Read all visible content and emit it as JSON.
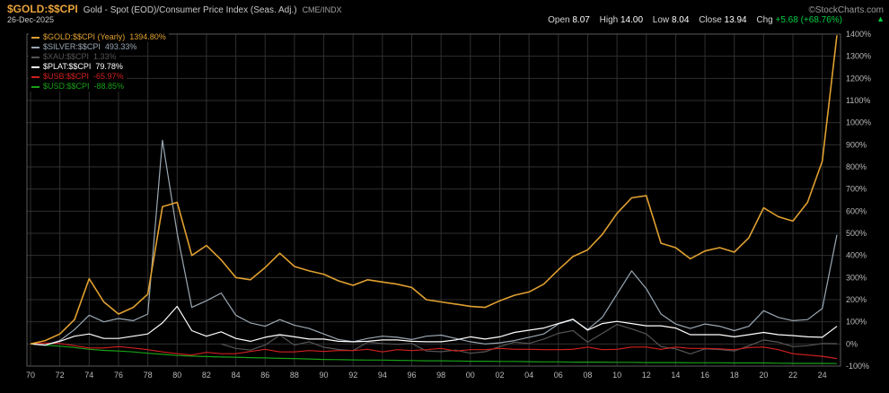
{
  "header": {
    "symbol": "$GOLD:$$CPI",
    "description": "Gold - Spot (EOD)/Consumer Price Index (Seas. Adj.)",
    "exchange": "CME/INDX",
    "date": "26-Dec-2025",
    "copyright": "©StockCharts.com",
    "quote": {
      "open_label": "Open",
      "open": "8.07",
      "high_label": "High",
      "high": "14.00",
      "low_label": "Low",
      "low": "8.04",
      "close_label": "Close",
      "close": "13.94",
      "chg_label": "Chg",
      "chg": "+5.68 (+68.76%)",
      "arrow": "▲"
    }
  },
  "colors": {
    "title": "#e8a33c",
    "up": "#00cc44",
    "grid": "#2f2f2f",
    "frame": "#5a5a5a",
    "axis_text": "#b9b9b9"
  },
  "legend": {
    "items": [
      {
        "label": "$GOLD:$$CPI (Yearly)",
        "value": "1394.80%"
      },
      {
        "label": "$SILVER:$$CPI",
        "value": "493.33%"
      },
      {
        "label": "$XAU:$$CPI",
        "value": "1.33%"
      },
      {
        "label": "$PLAT:$$CPI",
        "value": "79.78%"
      },
      {
        "label": "$USB:$$CPI",
        "value": "-65.97%"
      },
      {
        "label": "$USD:$$CPI",
        "value": "-88.85%"
      }
    ]
  },
  "chart_data": {
    "type": "line",
    "title": "$GOLD:$$CPI (Yearly)",
    "ylim": [
      -100,
      1400
    ],
    "grid": true,
    "legend_position": "top-left",
    "x": [
      1970,
      1971,
      1972,
      1973,
      1974,
      1975,
      1976,
      1977,
      1978,
      1979,
      1980,
      1981,
      1982,
      1983,
      1984,
      1985,
      1986,
      1987,
      1988,
      1989,
      1990,
      1991,
      1992,
      1993,
      1994,
      1995,
      1996,
      1997,
      1998,
      1999,
      2000,
      2001,
      2002,
      2003,
      2004,
      2005,
      2006,
      2007,
      2008,
      2009,
      2010,
      2011,
      2012,
      2013,
      2014,
      2015,
      2016,
      2017,
      2018,
      2019,
      2020,
      2021,
      2022,
      2023,
      2024,
      2025
    ],
    "x_tick_years": [
      1970,
      1972,
      1974,
      1976,
      1978,
      1980,
      1982,
      1984,
      1986,
      1988,
      1990,
      1992,
      1994,
      1996,
      1998,
      2000,
      2002,
      2004,
      2006,
      2008,
      2010,
      2012,
      2014,
      2016,
      2018,
      2020,
      2022,
      2024
    ],
    "x_tick_labels": [
      "70",
      "72",
      "74",
      "76",
      "78",
      "80",
      "82",
      "84",
      "86",
      "88",
      "90",
      "92",
      "94",
      "96",
      "98",
      "00",
      "02",
      "04",
      "06",
      "08",
      "10",
      "12",
      "14",
      "16",
      "18",
      "20",
      "22",
      "24"
    ],
    "y_tick_values": [
      1400,
      1300,
      1200,
      1100,
      1000,
      900,
      800,
      700,
      600,
      500,
      400,
      300,
      200,
      100,
      0,
      -100
    ],
    "y_tick_labels": [
      "1400%",
      "1300%",
      "1200%",
      "1100%",
      "1000%",
      "900%",
      "800%",
      "700%",
      "600%",
      "500%",
      "400%",
      "300%",
      "200%",
      "100%",
      "0%",
      "-100%"
    ],
    "series": [
      {
        "name": "$GOLD:$$CPI",
        "color": "#e0a030",
        "values": [
          0,
          15,
          45,
          110,
          295,
          190,
          135,
          165,
          225,
          620,
          640,
          400,
          445,
          380,
          300,
          290,
          345,
          410,
          350,
          330,
          315,
          285,
          265,
          290,
          280,
          270,
          255,
          200,
          190,
          180,
          170,
          165,
          195,
          220,
          235,
          270,
          335,
          395,
          425,
          495,
          590,
          660,
          670,
          455,
          435,
          385,
          420,
          435,
          415,
          480,
          615,
          575,
          555,
          640,
          826,
          1394.8
        ]
      },
      {
        "name": "$SILVER:$$CPI",
        "color": "#9aa8b4",
        "values": [
          0,
          -5,
          15,
          65,
          130,
          100,
          115,
          105,
          135,
          920,
          500,
          165,
          195,
          230,
          130,
          95,
          80,
          110,
          85,
          70,
          45,
          20,
          10,
          25,
          35,
          30,
          20,
          35,
          40,
          25,
          10,
          0,
          5,
          15,
          30,
          45,
          90,
          110,
          65,
          120,
          225,
          330,
          250,
          135,
          90,
          70,
          90,
          80,
          60,
          80,
          150,
          120,
          105,
          110,
          160,
          493.33
        ]
      },
      {
        "name": "$XAU:$$CPI",
        "color": "#555555",
        "values": [
          null,
          null,
          null,
          null,
          null,
          null,
          null,
          null,
          null,
          null,
          null,
          null,
          null,
          0,
          -20,
          -28,
          -5,
          40,
          -5,
          10,
          -15,
          -25,
          -30,
          8,
          2,
          -2,
          2,
          -32,
          -35,
          -28,
          -42,
          -35,
          -12,
          8,
          2,
          22,
          48,
          60,
          8,
          48,
          88,
          68,
          45,
          -12,
          -22,
          -45,
          -22,
          -25,
          -32,
          -8,
          18,
          8,
          -12,
          -8,
          2,
          1.33
        ]
      },
      {
        "name": "$PLAT:$$CPI",
        "color": "#ffffff",
        "values": [
          0,
          -5,
          12,
          35,
          45,
          25,
          25,
          35,
          45,
          95,
          170,
          60,
          35,
          55,
          25,
          12,
          30,
          42,
          32,
          22,
          22,
          12,
          10,
          12,
          18,
          18,
          12,
          10,
          10,
          18,
          32,
          22,
          32,
          52,
          62,
          72,
          92,
          112,
          62,
          92,
          102,
          92,
          82,
          82,
          72,
          42,
          42,
          42,
          32,
          42,
          52,
          42,
          38,
          32,
          30,
          79.78
        ]
      },
      {
        "name": "$USB:$$CPI",
        "color": "#d02020",
        "values": [
          0,
          4,
          2,
          -8,
          -18,
          -18,
          -12,
          -18,
          -26,
          -36,
          -44,
          -50,
          -38,
          -44,
          -44,
          -34,
          -24,
          -36,
          -36,
          -30,
          -34,
          -30,
          -30,
          -24,
          -36,
          -26,
          -30,
          -26,
          -20,
          -32,
          -26,
          -26,
          -20,
          -24,
          -24,
          -26,
          -26,
          -24,
          -14,
          -26,
          -24,
          -14,
          -14,
          -24,
          -14,
          -20,
          -20,
          -22,
          -26,
          -16,
          -14,
          -26,
          -44,
          -50,
          -56,
          -65.97
        ]
      },
      {
        "name": "$USD:$$CPI",
        "color": "#18a018",
        "values": [
          0,
          -6,
          -10,
          -16,
          -24,
          -29,
          -32,
          -36,
          -42,
          -47,
          -52,
          -55,
          -57,
          -59,
          -60,
          -62,
          -63,
          -65,
          -66,
          -68,
          -70,
          -71,
          -72,
          -73,
          -73,
          -74,
          -75,
          -76,
          -76,
          -77,
          -78,
          -78,
          -79,
          -79,
          -80,
          -81,
          -81,
          -82,
          -82,
          -82,
          -83,
          -83,
          -84,
          -84,
          -84,
          -85,
          -85,
          -85,
          -86,
          -86,
          -86,
          -87,
          -88,
          -88,
          -88,
          -88.85
        ]
      }
    ]
  }
}
